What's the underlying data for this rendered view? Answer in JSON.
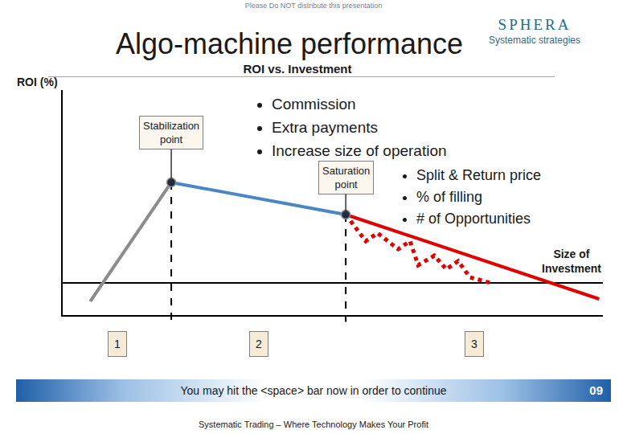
{
  "header": {
    "notice": "Please Do NOT distribute this presentation",
    "title": "Algo-machine performance",
    "subtitle": "ROI vs. Investment",
    "logo": "SPHERA",
    "logo_tagline": "Systematic strategies"
  },
  "chart_data": {
    "type": "line",
    "y_label": "ROI (%)",
    "x_label": [
      "Size of",
      "Investment"
    ],
    "xlim": [
      0,
      100
    ],
    "ylim": [
      -10,
      60
    ],
    "xticks": [],
    "yticks": [],
    "tick_labels": false,
    "grid": false,
    "series": [
      {
        "color": "#8c8c8c",
        "line_style": "solid",
        "x": [
          5.1,
          20.1
        ],
        "values": [
          -5.75,
          31.25
        ]
      },
      {
        "color": "#4a86c5",
        "line_style": "solid",
        "x": [
          20.1,
          52.4
        ],
        "values": [
          31.25,
          21.25
        ]
      },
      {
        "color": "#e00000",
        "line_style": "solid",
        "x": [
          52.4,
          99.3
        ],
        "values": [
          21.25,
          -5
        ]
      },
      {
        "color": "#e00000",
        "line_style": "dot",
        "x": [
          52.4,
          56.1,
          58.3,
          62.1,
          64.3,
          65.8,
          68.8,
          71,
          73.2,
          75.4,
          79.2
        ],
        "values": [
          21.25,
          13,
          15.5,
          10.5,
          13,
          5.5,
          8.5,
          4.25,
          6.75,
          1.75,
          0
        ]
      }
    ],
    "callouts": [
      {
        "text": [
          "Stabilization",
          "point"
        ],
        "x": 20.1,
        "y": 31.25
      },
      {
        "text": [
          "Saturation",
          "point"
        ],
        "x": 52.4,
        "y": 21.25
      }
    ],
    "regions": [
      "1",
      "2",
      "3"
    ]
  },
  "bullets": [
    [
      "Commission",
      "Extra payments",
      "Increase size of operation"
    ],
    [
      "Split & Return price",
      "% of filling",
      "# of Opportunities"
    ]
  ],
  "footer": {
    "prompt": "You may hit the <space> bar now in order to continue",
    "page": "09",
    "tagline": "Systematic Trading – Where Technology Makes Your Profit"
  }
}
